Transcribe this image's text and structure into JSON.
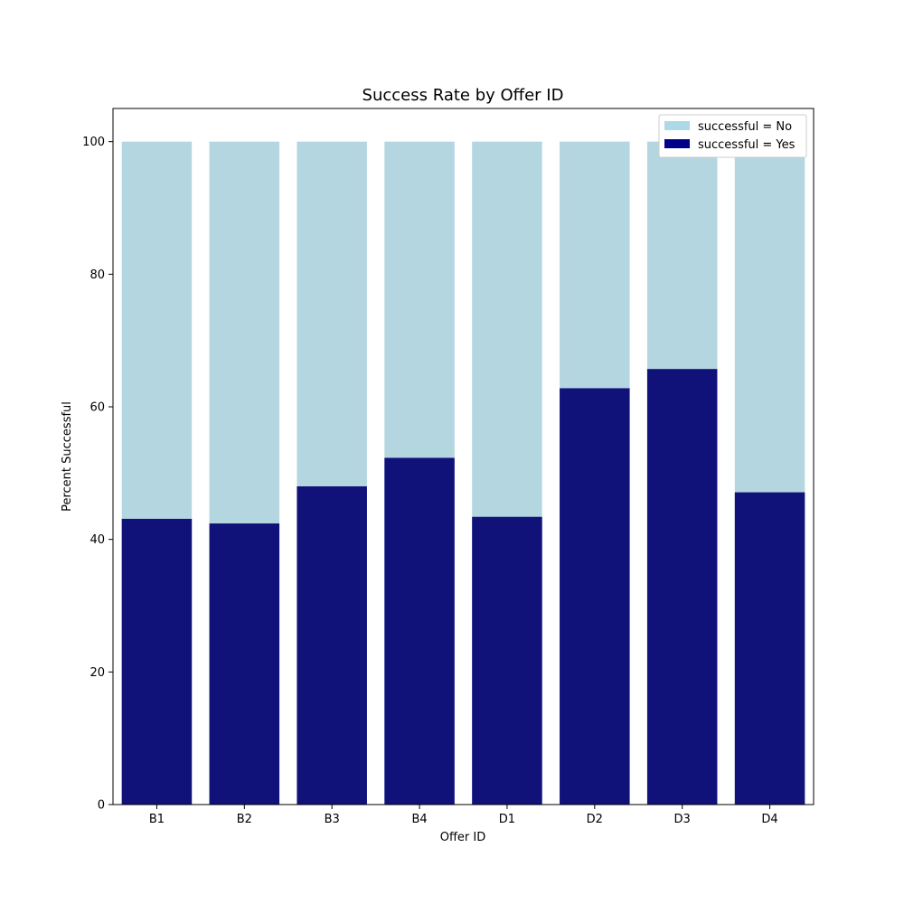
{
  "chart_data": {
    "type": "bar",
    "stacked": "overlay-100",
    "title": "Success Rate by Offer ID",
    "xlabel": "Offer ID",
    "ylabel": "Percent Successful",
    "categories": [
      "B1",
      "B2",
      "B3",
      "B4",
      "D1",
      "D2",
      "D3",
      "D4"
    ],
    "ylim": [
      0,
      105
    ],
    "yticks": [
      0,
      20,
      40,
      60,
      80,
      100
    ],
    "grid": false,
    "legend_position": "top-right",
    "series": [
      {
        "name": "successful = No",
        "color": "#b4d6e0",
        "legend_color": "#add8e6",
        "values": [
          100,
          100,
          100,
          100,
          100,
          100,
          100,
          100
        ]
      },
      {
        "name": "successful = Yes",
        "color": "#11117a",
        "legend_color": "#00008b",
        "values": [
          43.1,
          42.4,
          48.0,
          52.3,
          43.4,
          62.8,
          65.7,
          47.1
        ]
      }
    ]
  }
}
